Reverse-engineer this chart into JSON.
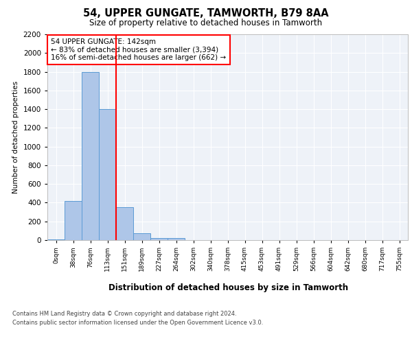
{
  "title": "54, UPPER GUNGATE, TAMWORTH, B79 8AA",
  "subtitle": "Size of property relative to detached houses in Tamworth",
  "xlabel": "Distribution of detached houses by size in Tamworth",
  "ylabel": "Number of detached properties",
  "bin_labels": [
    "0sqm",
    "38sqm",
    "76sqm",
    "113sqm",
    "151sqm",
    "189sqm",
    "227sqm",
    "264sqm",
    "302sqm",
    "340sqm",
    "378sqm",
    "415sqm",
    "453sqm",
    "491sqm",
    "529sqm",
    "566sqm",
    "604sqm",
    "642sqm",
    "680sqm",
    "717sqm",
    "755sqm"
  ],
  "bar_values": [
    10,
    420,
    1800,
    1400,
    350,
    75,
    25,
    20,
    0,
    0,
    0,
    0,
    0,
    0,
    0,
    0,
    0,
    0,
    0,
    0,
    0
  ],
  "bar_color": "#aec6e8",
  "bar_edge_color": "#5b9bd5",
  "red_line_bin_index": 3,
  "annotation_text": "54 UPPER GUNGATE: 142sqm\n← 83% of detached houses are smaller (3,394)\n16% of semi-detached houses are larger (662) →",
  "annotation_box_color": "white",
  "annotation_box_edge": "red",
  "ylim": [
    0,
    2200
  ],
  "yticks": [
    0,
    200,
    400,
    600,
    800,
    1000,
    1200,
    1400,
    1600,
    1800,
    2000,
    2200
  ],
  "footer_line1": "Contains HM Land Registry data © Crown copyright and database right 2024.",
  "footer_line2": "Contains public sector information licensed under the Open Government Licence v3.0.",
  "background_color": "#eef2f8",
  "grid_color": "white"
}
